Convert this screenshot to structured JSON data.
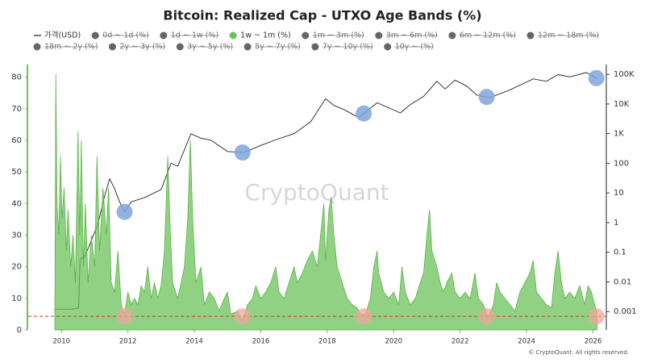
{
  "chart_data": {
    "type": "area-line",
    "title": "Bitcoin: Realized Cap - UTXO Age Bands (%)",
    "watermark": "CryptoQuant",
    "footer": "© CryptoQuant. All rights reserved.",
    "xlim": [
      2009,
      2026.4
    ],
    "xticks": [
      2010,
      2012,
      2014,
      2016,
      2018,
      2020,
      2022,
      2024,
      2026
    ],
    "ylim": [
      0,
      84
    ],
    "yticks": [
      0,
      10,
      20,
      30,
      40,
      50,
      60,
      70,
      80
    ],
    "y2lim": [
      0.00024,
      214000
    ],
    "y2log": true,
    "y2ticks": [
      0.001,
      0.01,
      0.1,
      1,
      10,
      100,
      {
        "value": 1000,
        "label": "1K"
      },
      {
        "value": 10000,
        "label": "10K"
      },
      {
        "value": 100000,
        "label": "100K"
      }
    ],
    "threshold": 4.3,
    "threshold_color": "#d93025",
    "highlight_x": [
      2011.9,
      2015.45,
      2019.1,
      2022.8,
      2026.1
    ],
    "highlight_colors": [
      "#7fa6dc",
      "#f2a49b"
    ],
    "series": [
      {
        "name": "가격(USD)",
        "color": "#222222",
        "axis": "y2",
        "visible": true,
        "x": [
          2009.8,
          2010.0,
          2010.3,
          2010.52,
          2010.56,
          2010.7,
          2010.9,
          2011.1,
          2011.3,
          2011.45,
          2011.6,
          2011.75,
          2011.9,
          2012.1,
          2012.5,
          2013.0,
          2013.3,
          2013.5,
          2013.9,
          2014.2,
          2014.5,
          2015.0,
          2015.5,
          2016.0,
          2016.5,
          2017.0,
          2017.5,
          2017.95,
          2018.2,
          2018.5,
          2018.95,
          2019.5,
          2020.2,
          2020.5,
          2020.9,
          2021.3,
          2021.55,
          2021.85,
          2022.2,
          2022.5,
          2022.9,
          2023.5,
          2024.2,
          2024.6,
          2024.95,
          2025.3,
          2025.8,
          2026.1
        ],
        "values": [
          0.0012,
          0.0012,
          0.0012,
          0.0013,
          0.06,
          0.07,
          0.25,
          0.9,
          8,
          30,
          14,
          5,
          2.3,
          5,
          7,
          13,
          100,
          80,
          1000,
          700,
          600,
          250,
          230,
          400,
          650,
          1000,
          2500,
          15000,
          9000,
          6500,
          3500,
          11000,
          5000,
          9500,
          18000,
          58000,
          32000,
          64000,
          40000,
          20000,
          16500,
          30000,
          70000,
          58000,
          98000,
          82000,
          115000,
          75000
        ]
      },
      {
        "name": "0d ~ 1d (%)",
        "color": "#666666",
        "visible": false
      },
      {
        "name": "1d ~ 1w (%)",
        "color": "#666666",
        "visible": false
      },
      {
        "name": "1w ~ 1m (%)",
        "color": "#6cc25a",
        "axis": "y",
        "visible": true,
        "x": [
          2009.8,
          2009.83,
          2009.87,
          2009.92,
          2009.97,
          2010.02,
          2010.08,
          2010.15,
          2010.2,
          2010.28,
          2010.35,
          2010.42,
          2010.5,
          2010.55,
          2010.6,
          2010.66,
          2010.72,
          2010.8,
          2010.9,
          2011.0,
          2011.07,
          2011.15,
          2011.25,
          2011.35,
          2011.42,
          2011.5,
          2011.6,
          2011.7,
          2011.8,
          2011.9,
          2012.0,
          2012.1,
          2012.2,
          2012.3,
          2012.4,
          2012.5,
          2012.6,
          2012.7,
          2012.8,
          2012.9,
          2013.0,
          2013.1,
          2013.2,
          2013.28,
          2013.35,
          2013.5,
          2013.6,
          2013.7,
          2013.8,
          2013.88,
          2013.95,
          2014.05,
          2014.2,
          2014.3,
          2014.45,
          2014.6,
          2014.75,
          2014.9,
          2015.0,
          2015.1,
          2015.3,
          2015.45,
          2015.6,
          2015.75,
          2015.85,
          2016.0,
          2016.15,
          2016.3,
          2016.45,
          2016.55,
          2016.7,
          2016.85,
          2017.0,
          2017.1,
          2017.25,
          2017.4,
          2017.55,
          2017.7,
          2017.8,
          2017.9,
          2017.95,
          2018.05,
          2018.12,
          2018.2,
          2018.3,
          2018.45,
          2018.6,
          2018.75,
          2018.9,
          2019.0,
          2019.15,
          2019.3,
          2019.4,
          2019.5,
          2019.55,
          2019.7,
          2019.85,
          2020.0,
          2020.15,
          2020.25,
          2020.35,
          2020.5,
          2020.65,
          2020.8,
          2020.9,
          2021.0,
          2021.08,
          2021.15,
          2021.3,
          2021.4,
          2021.5,
          2021.6,
          2021.75,
          2021.85,
          2022.0,
          2022.15,
          2022.3,
          2022.45,
          2022.55,
          2022.7,
          2022.85,
          2023.0,
          2023.1,
          2023.2,
          2023.35,
          2023.5,
          2023.65,
          2023.8,
          2023.95,
          2024.1,
          2024.2,
          2024.3,
          2024.45,
          2024.6,
          2024.75,
          2024.85,
          2024.95,
          2025.05,
          2025.15,
          2025.3,
          2025.45,
          2025.6,
          2025.75,
          2025.85,
          2025.95,
          2026.05,
          2026.12
        ],
        "values": [
          5,
          81,
          40,
          30,
          55,
          35,
          45,
          25,
          38,
          20,
          30,
          15,
          63,
          30,
          60,
          20,
          40,
          15,
          30,
          20,
          55,
          25,
          45,
          30,
          45,
          15,
          12,
          25,
          8,
          5,
          12,
          8,
          10,
          8,
          14,
          12,
          20,
          10,
          15,
          10,
          14,
          25,
          55,
          30,
          15,
          10,
          15,
          20,
          35,
          60,
          35,
          15,
          20,
          8,
          12,
          10,
          6,
          10,
          12,
          5,
          6,
          3,
          8,
          10,
          14,
          10,
          12,
          15,
          20,
          12,
          10,
          15,
          20,
          15,
          18,
          22,
          25,
          20,
          30,
          40,
          22,
          38,
          42,
          30,
          20,
          15,
          10,
          8,
          7,
          5,
          5,
          10,
          20,
          25,
          18,
          12,
          10,
          12,
          8,
          20,
          12,
          8,
          10,
          15,
          18,
          30,
          38,
          25,
          20,
          15,
          12,
          15,
          18,
          12,
          10,
          12,
          10,
          18,
          10,
          8,
          4,
          8,
          15,
          12,
          10,
          8,
          6,
          12,
          15,
          18,
          22,
          12,
          10,
          8,
          7,
          18,
          25,
          15,
          10,
          12,
          10,
          14,
          8,
          14,
          12,
          8,
          5
        ]
      },
      {
        "name": "1m ~ 3m (%)",
        "color": "#666666",
        "visible": false
      },
      {
        "name": "3m ~ 6m (%)",
        "color": "#666666",
        "visible": false
      },
      {
        "name": "6m ~ 12m (%)",
        "color": "#666666",
        "visible": false
      },
      {
        "name": "12m ~ 18m (%)",
        "color": "#666666",
        "visible": false
      },
      {
        "name": "18m ~ 2y (%)",
        "color": "#666666",
        "visible": false
      },
      {
        "name": "2y ~ 3y (%)",
        "color": "#666666",
        "visible": false
      },
      {
        "name": "3y ~ 5y (%)",
        "color": "#666666",
        "visible": false
      },
      {
        "name": "5y ~ 7y (%)",
        "color": "#666666",
        "visible": false
      },
      {
        "name": "7y ~ 10y (%)",
        "color": "#666666",
        "visible": false
      },
      {
        "name": "10y ~ (%)",
        "color": "#666666",
        "visible": false
      }
    ]
  }
}
